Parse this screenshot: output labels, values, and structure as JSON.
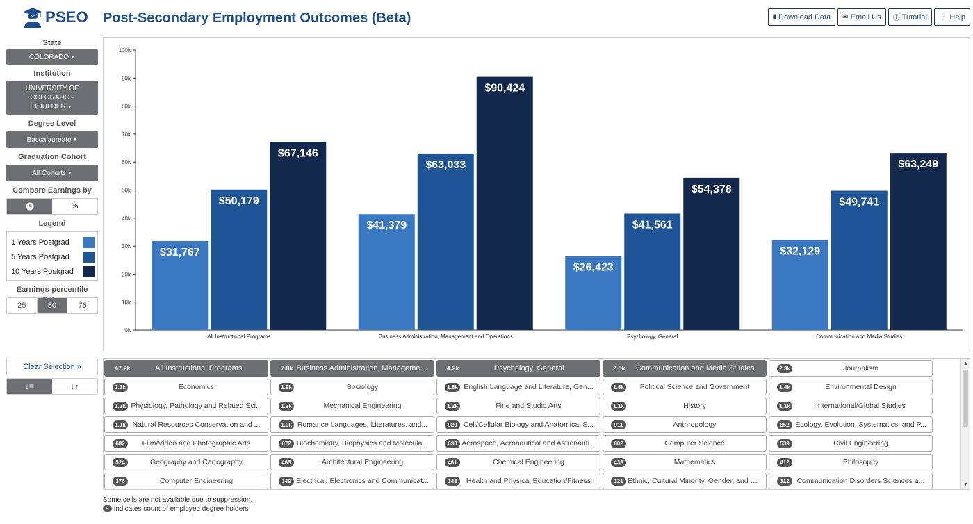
{
  "app": {
    "logo_text": "PSEO",
    "title": "Post-Secondary Employment Outcomes (Beta)"
  },
  "top_buttons": [
    {
      "label": "Download Data",
      "icon": "file-icon"
    },
    {
      "label": "Email Us",
      "icon": "envelope-icon"
    },
    {
      "label": "Tutorial",
      "icon": "info-icon"
    },
    {
      "label": "Help",
      "icon": "question-icon"
    }
  ],
  "sidebar": {
    "state_label": "State",
    "state_value": "COLORADO",
    "institution_label": "Institution",
    "institution_value_lines": [
      "UNIVERSITY OF",
      "COLORADO -",
      "BOULDER"
    ],
    "degree_label": "Degree Level",
    "degree_value": "Baccalaureate",
    "cohort_label": "Graduation Cohort",
    "cohort_value": "All Cohorts",
    "compare_label": "Compare Earnings by",
    "compare_options": [
      "clock-icon",
      "percent-icon"
    ],
    "legend_label": "Legend",
    "legend_items": [
      {
        "label": "1 Years Postgrad",
        "color": "#3a78c2"
      },
      {
        "label": "5 Years Postgrad",
        "color": "#1f5496"
      },
      {
        "label": "10 Years Postgrad",
        "color": "#12294d"
      }
    ],
    "percentile_label": "Earnings-percentile Filter",
    "percentile_options": [
      "25",
      "50",
      "75"
    ],
    "percentile_selected": "50"
  },
  "chart_data": {
    "type": "bar",
    "categories": [
      "All Instructional Programs",
      "Business Administration, Management and Operations",
      "Psychology, General",
      "Communication and Media Studies"
    ],
    "series": [
      {
        "name": "1 Years Postgrad",
        "values": [
          31767,
          41379,
          26423,
          32129
        ],
        "color": "#3a78c2"
      },
      {
        "name": "5 Years Postgrad",
        "values": [
          50179,
          63033,
          41561,
          49741
        ],
        "color": "#1f5496"
      },
      {
        "name": "10 Years Postgrad",
        "values": [
          67146,
          90424,
          54378,
          63249
        ],
        "color": "#12294d"
      }
    ],
    "data_labels": [
      [
        "$31,767",
        "$41,379",
        "$26,423",
        "$32,129"
      ],
      [
        "$50,179",
        "$63,033",
        "$41,561",
        "$49,741"
      ],
      [
        "$67,146",
        "$90,424",
        "$54,378",
        "$63,249"
      ]
    ],
    "y_ticks": [
      0,
      10000,
      20000,
      30000,
      40000,
      50000,
      60000,
      70000,
      80000,
      90000,
      100000
    ],
    "y_tick_labels": [
      "0k",
      "10k",
      "20k",
      "30k",
      "40k",
      "50k",
      "60k",
      "70k",
      "80k",
      "90k",
      "100k"
    ],
    "ylim": [
      0,
      100000
    ],
    "grid": false,
    "legend": "sidebar"
  },
  "controls": {
    "clear_label": "Clear Selection",
    "sort_options": [
      "sort-descending-icon",
      "sort-alpha-icon"
    ]
  },
  "programs": [
    {
      "count": "47.2k",
      "name": "All Instructional Programs",
      "selected": true
    },
    {
      "count": "7.8k",
      "name": "Business Administration, Managemen...",
      "selected": true
    },
    {
      "count": "4.2k",
      "name": "Psychology, General",
      "selected": true
    },
    {
      "count": "2.5k",
      "name": "Communication and Media Studies",
      "selected": true
    },
    {
      "count": "2.3k",
      "name": "Journalism",
      "selected": false
    },
    {
      "count": "2.1k",
      "name": "Economics",
      "selected": false
    },
    {
      "count": "1.9k",
      "name": "Sociology",
      "selected": false
    },
    {
      "count": "1.8k",
      "name": "English Language and Literature, Gen...",
      "selected": false
    },
    {
      "count": "1.6k",
      "name": "Political Science and Government",
      "selected": false
    },
    {
      "count": "1.4k",
      "name": "Environmental Design",
      "selected": false
    },
    {
      "count": "1.3k",
      "name": "Physiology, Pathology and Related Sci...",
      "selected": false
    },
    {
      "count": "1.2k",
      "name": "Mechanical Engineering",
      "selected": false
    },
    {
      "count": "1.2k",
      "name": "Fine and Studio Arts",
      "selected": false
    },
    {
      "count": "1.1k",
      "name": "History",
      "selected": false
    },
    {
      "count": "1.1k",
      "name": "International/Global Studies",
      "selected": false
    },
    {
      "count": "1.1k",
      "name": "Natural Resources Conservation and ...",
      "selected": false
    },
    {
      "count": "1.0k",
      "name": "Romance Languages, Literatures, and...",
      "selected": false
    },
    {
      "count": "920",
      "name": "Cell/Cellular Biology and Anatomical S...",
      "selected": false
    },
    {
      "count": "911",
      "name": "Anthropology",
      "selected": false
    },
    {
      "count": "852",
      "name": "Ecology, Evolution, Systematics, and P...",
      "selected": false
    },
    {
      "count": "682",
      "name": "Film/Video and Photographic Arts",
      "selected": false
    },
    {
      "count": "672",
      "name": "Biochemistry, Biophysics and Molecula...",
      "selected": false
    },
    {
      "count": "630",
      "name": "Aerospace, Aeronautical and Astronauti...",
      "selected": false
    },
    {
      "count": "602",
      "name": "Computer Science",
      "selected": false
    },
    {
      "count": "539",
      "name": "Civil Engineering",
      "selected": false
    },
    {
      "count": "524",
      "name": "Geography and Cartography",
      "selected": false
    },
    {
      "count": "465",
      "name": "Architectural Engineering",
      "selected": false
    },
    {
      "count": "461",
      "name": "Chemical Engineering",
      "selected": false
    },
    {
      "count": "438",
      "name": "Mathematics",
      "selected": false
    },
    {
      "count": "412",
      "name": "Philosophy",
      "selected": false
    },
    {
      "count": "376",
      "name": "Computer Engineering",
      "selected": false
    },
    {
      "count": "349",
      "name": "Electrical, Electronics and Communicat...",
      "selected": false
    },
    {
      "count": "343",
      "name": "Health and Physical Education/Fitness",
      "selected": false
    },
    {
      "count": "321",
      "name": "Ethnic, Cultural Minority, Gender, and Gr...",
      "selected": false
    },
    {
      "count": "312",
      "name": "Communication Disorders Sciences a...",
      "selected": false
    }
  ],
  "footnotes": {
    "suppression": "Some cells are not available due to suppression.",
    "badge_symbol": "#",
    "count_note": "indicates count of employed degree holders"
  }
}
